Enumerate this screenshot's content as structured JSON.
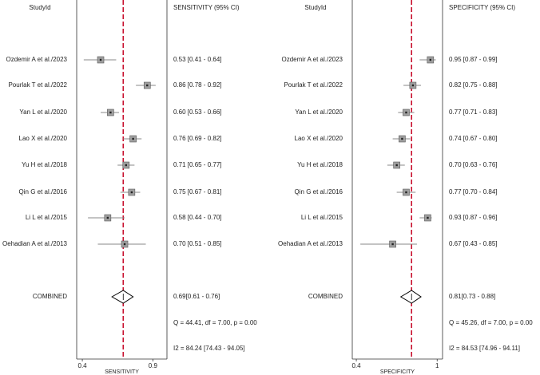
{
  "chart_data": [
    {
      "type": "forest",
      "header_label": "StudyId",
      "header_value": "SENSITIVITY (95% CI)",
      "xlabel": "SENSITIVITY",
      "categories": [
        "Ozdemir A et al./2023",
        "Pourlak T et al./2022",
        "Yan L et al./2020",
        "Lao X et al./2020",
        "Yu H et al./2018",
        "Qin G et al./2016",
        "Li L et al./2015",
        "Oehadian A et al./2013"
      ],
      "values": [
        0.53,
        0.86,
        0.6,
        0.76,
        0.71,
        0.75,
        0.58,
        0.7
      ],
      "lower": [
        0.41,
        0.78,
        0.53,
        0.69,
        0.65,
        0.67,
        0.44,
        0.51
      ],
      "upper": [
        0.64,
        0.92,
        0.66,
        0.82,
        0.77,
        0.81,
        0.7,
        0.85
      ],
      "value_labels": [
        "0.53 [0.41 - 0.64]",
        "0.86 [0.78 - 0.92]",
        "0.60 [0.53 - 0.66]",
        "0.76 [0.69 - 0.82]",
        "0.71 [0.65 - 0.77]",
        "0.75 [0.67 - 0.81]",
        "0.58 [0.44 - 0.70]",
        "0.70 [0.51 - 0.85]"
      ],
      "combined": {
        "label": "COMBINED",
        "value": 0.69,
        "lower": 0.61,
        "upper": 0.76,
        "value_label": "0.69[0.61 - 0.76]"
      },
      "annotations": [
        "Q = 44.41, df = 7.00, p =  0.00",
        "I2 = 84.24 [74.43 - 94.05]"
      ],
      "xlim": [
        0.36,
        1.0
      ],
      "xticks": [
        0.4,
        0.9
      ],
      "ref_color": "#c8102e"
    },
    {
      "type": "forest",
      "header_label": "StudyId",
      "header_value": "SPECIFICITY (95% CI)",
      "xlabel": "SPECIFICITY",
      "categories": [
        "Ozdemir A et al./2023",
        "Pourlak T et al./2022",
        "Yan L et al./2020",
        "Lao X et al./2020",
        "Yu H et al./2018",
        "Qin G et al./2016",
        "Li L et al./2015",
        "Oehadian A et al./2013"
      ],
      "values": [
        0.95,
        0.82,
        0.77,
        0.74,
        0.7,
        0.77,
        0.93,
        0.67
      ],
      "lower": [
        0.87,
        0.75,
        0.71,
        0.67,
        0.63,
        0.7,
        0.87,
        0.43
      ],
      "upper": [
        0.99,
        0.88,
        0.83,
        0.8,
        0.76,
        0.84,
        0.96,
        0.85
      ],
      "value_labels": [
        "0.95 [0.87 - 0.99]",
        "0.82 [0.75 - 0.88]",
        "0.77 [0.71 - 0.83]",
        "0.74 [0.67 - 0.80]",
        "0.70 [0.63 - 0.76]",
        "0.77 [0.70 - 0.84]",
        "0.93 [0.87 - 0.96]",
        "0.67 [0.43 - 0.85]"
      ],
      "combined": {
        "label": "COMBINED",
        "value": 0.81,
        "lower": 0.73,
        "upper": 0.88,
        "value_label": "0.81[0.73 - 0.88]"
      },
      "annotations": [
        "Q = 45.26, df = 7.00, p =  0.00",
        "I2 = 84.53 [74.96 - 94.11]"
      ],
      "xlim": [
        0.37,
        1.04
      ],
      "xticks": [
        0.4,
        1.0
      ],
      "ref_color": "#c8102e"
    }
  ]
}
